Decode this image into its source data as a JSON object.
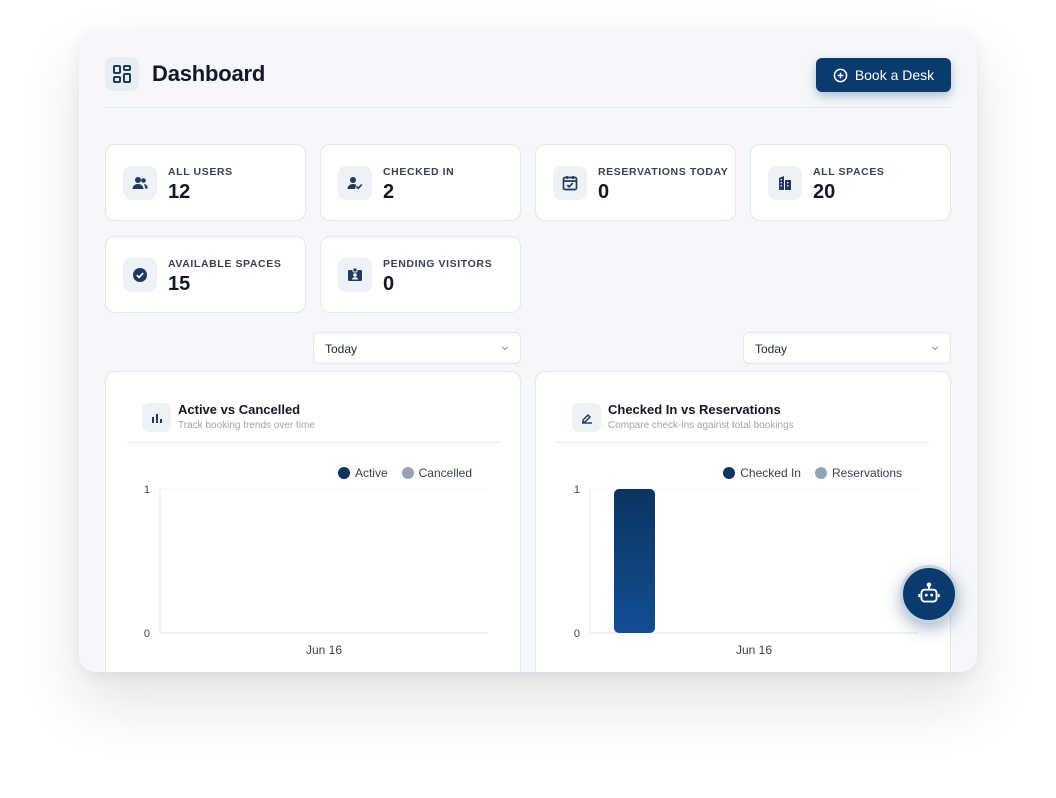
{
  "header": {
    "title": "Dashboard",
    "book_label": "Book a Desk"
  },
  "stats": [
    {
      "label": "ALL USERS",
      "value": "12",
      "icon": "users-icon"
    },
    {
      "label": "CHECKED IN",
      "value": "2",
      "icon": "user-check-icon"
    },
    {
      "label": "RESERVATIONS TODAY",
      "value": "0",
      "icon": "calendar-check-icon"
    },
    {
      "label": "ALL SPACES",
      "value": "20",
      "icon": "building-icon"
    },
    {
      "label": "AVAILABLE SPACES",
      "value": "15",
      "icon": "check-circle-icon"
    },
    {
      "label": "PENDING VISITORS",
      "value": "0",
      "icon": "id-badge-icon"
    }
  ],
  "filters": [
    {
      "value": "Today"
    },
    {
      "value": "Today"
    }
  ],
  "charts": [
    {
      "title": "Active vs Cancelled",
      "subtitle": "Track booking trends over time",
      "icon": "bar-chart-icon"
    },
    {
      "title": "Checked In vs Reservations",
      "subtitle": "Compare check-ins against total bookings",
      "icon": "signature-icon"
    }
  ],
  "chart_data": [
    {
      "type": "bar",
      "categories": [
        "Jun 16"
      ],
      "series": [
        {
          "name": "Active",
          "values": [
            0
          ],
          "color": "#0b3461"
        },
        {
          "name": "Cancelled",
          "values": [
            0
          ],
          "color": "#94a3b8"
        }
      ],
      "ylim": [
        0,
        1
      ],
      "yticks": [
        "0",
        "1"
      ],
      "legend": "top-right"
    },
    {
      "type": "bar",
      "categories": [
        "Jun 16"
      ],
      "series": [
        {
          "name": "Checked In",
          "values": [
            1
          ],
          "color": "#0b3461"
        },
        {
          "name": "Reservations",
          "values": [
            0
          ],
          "color": "#94a3b8"
        }
      ],
      "ylim": [
        0,
        1
      ],
      "yticks": [
        "0",
        "1"
      ],
      "legend": "top-right"
    }
  ],
  "colors": {
    "primary": "#0b3a6e",
    "muted": "#94a3b8",
    "background": "#f5f7fb"
  },
  "assistant": {
    "icon": "robot-icon"
  }
}
